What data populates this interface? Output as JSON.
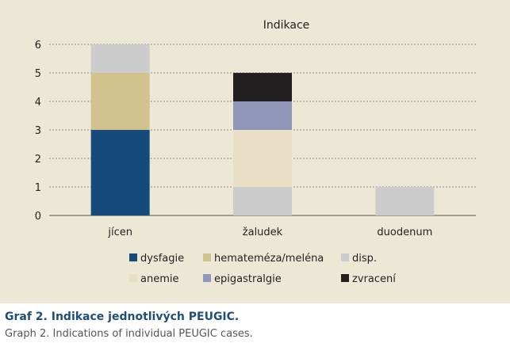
{
  "chart_data": {
    "type": "bar",
    "stacked": true,
    "title": "Indikace",
    "categories": [
      "jícen",
      "žaludek",
      "duodenum"
    ],
    "ylim": [
      0,
      6
    ],
    "yticks": [
      0,
      1,
      2,
      3,
      4,
      5,
      6
    ],
    "grid": true,
    "legend_position": "bottom",
    "series": [
      {
        "name": "dysfagie",
        "color": "#174a7c",
        "values": [
          3,
          0,
          0
        ]
      },
      {
        "name": "hemateméza/meléna",
        "color": "#d2c28e",
        "values": [
          2,
          0,
          0
        ]
      },
      {
        "name": "disp.",
        "color": "#cccccc",
        "values": [
          1,
          1,
          1
        ]
      },
      {
        "name": "anemie",
        "color": "#e8dfc6",
        "values": [
          0,
          2,
          0
        ]
      },
      {
        "name": "epigastralgie",
        "color": "#9296b8",
        "values": [
          0,
          1,
          0
        ]
      },
      {
        "name": "zvracení",
        "color": "#231f20",
        "values": [
          0,
          1,
          0
        ]
      }
    ],
    "stack_order": [
      [
        "dysfagie",
        "hemateméza/meléna",
        "disp."
      ],
      [
        "disp.",
        "anemie",
        "epigastralgie",
        "zvracení"
      ],
      [
        "disp."
      ]
    ]
  },
  "caption": {
    "title": "Graf 2. Indikace jednotlivých PEUGIC.",
    "subtitle": "Graph 2. Indications of individual PEUGIC cases."
  }
}
